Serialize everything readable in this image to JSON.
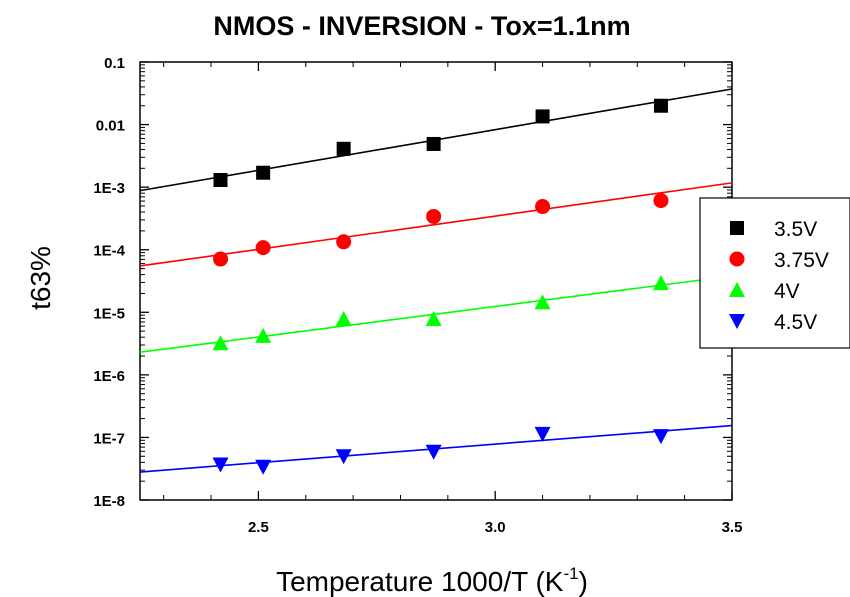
{
  "chart_data": {
    "type": "scatter",
    "title": "NMOS - INVERSION - Tox=1.1nm",
    "xlabel": "Temperature 1000/T (K",
    "xlabel_sup": "-1",
    "xlabel_close": ")",
    "ylabel": "t63%",
    "xlim": [
      2.25,
      3.5
    ],
    "ylim": [
      1e-08,
      0.1
    ],
    "yscale": "log",
    "x_ticks": [
      2.5,
      3.0,
      3.5
    ],
    "x_tick_labels": [
      "2.5",
      "3.0",
      "3.5"
    ],
    "y_ticks": [
      1e-08,
      1e-07,
      1e-06,
      1e-05,
      0.0001,
      0.001,
      0.01,
      0.1
    ],
    "y_tick_labels": [
      "1E-8",
      "1E-7",
      "1E-6",
      "1E-5",
      "1E-4",
      "1E-3",
      "0.01",
      "0.1"
    ],
    "grid": false,
    "legend_position": "right",
    "series": [
      {
        "name": "3.5V",
        "marker": "square",
        "color": "#000000",
        "x": [
          2.42,
          2.51,
          2.68,
          2.87,
          3.1,
          3.35
        ],
        "y": [
          0.0013,
          0.0017,
          0.0041,
          0.0049,
          0.0135,
          0.02
        ],
        "fit": [
          [
            2.25,
            0.00088
          ],
          [
            3.5,
            0.037
          ]
        ]
      },
      {
        "name": "3.75V",
        "marker": "circle",
        "color": "#ff0000",
        "x": [
          2.42,
          2.51,
          2.68,
          2.87,
          3.1,
          3.35
        ],
        "y": [
          7.1e-05,
          0.000108,
          0.000134,
          0.00034,
          0.00049,
          0.00061
        ],
        "fit": [
          [
            2.25,
            5.5e-05
          ],
          [
            3.5,
            0.00117
          ]
        ]
      },
      {
        "name": "4V",
        "marker": "triangle-up",
        "color": "#00ff00",
        "x": [
          2.42,
          2.51,
          2.68,
          2.87,
          3.1,
          3.35
        ],
        "y": [
          3.2e-06,
          4.2e-06,
          7.8e-06,
          7.8e-06,
          1.44e-05,
          2.93e-05
        ],
        "fit": [
          [
            2.25,
            2.3e-06
          ],
          [
            3.5,
            3.8e-05
          ]
        ]
      },
      {
        "name": "4.5V",
        "marker": "triangle-down",
        "color": "#0000ff",
        "x": [
          2.42,
          2.51,
          2.68,
          2.87,
          3.1,
          3.35
        ],
        "y": [
          3.7e-08,
          3.4e-08,
          5e-08,
          5.9e-08,
          1.14e-07,
          1.05e-07
        ],
        "fit": [
          [
            2.25,
            2.8e-08
          ],
          [
            3.5,
            1.55e-07
          ]
        ]
      }
    ]
  }
}
